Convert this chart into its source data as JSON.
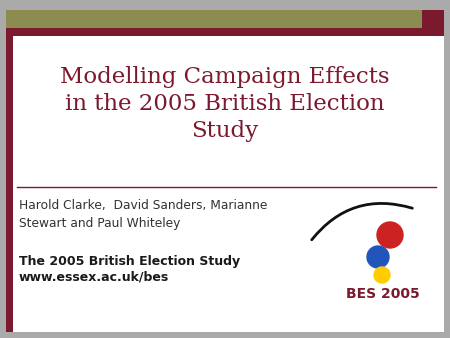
{
  "title_line1": "Modelling Campaign Effects",
  "title_line2": "in the 2005 British Election",
  "title_line3": "Study",
  "title_color": "#7B1A2E",
  "author_text": "Harold Clarke,  David Sanders, Marianne\nStewart and Paul Whiteley",
  "bold_line1": "The 2005 British Election Study",
  "bold_line2": "www.essex.ac.uk/bes",
  "bes_label": "BES 2005",
  "bg_color": "#FFFFFF",
  "left_border_color": "#7B1A2E",
  "top_bar_olive": "#8C8C50",
  "top_bar_red": "#7B1A2E",
  "separator_color": "#7B1A2E",
  "text_color": "#333333",
  "bold_text_color": "#1A1A1A",
  "bes_text_color": "#7B1A2E",
  "circle_red": "#CC2222",
  "circle_blue": "#2255BB",
  "circle_yellow": "#FFCC00",
  "outer_bg": "#AAAAAA"
}
